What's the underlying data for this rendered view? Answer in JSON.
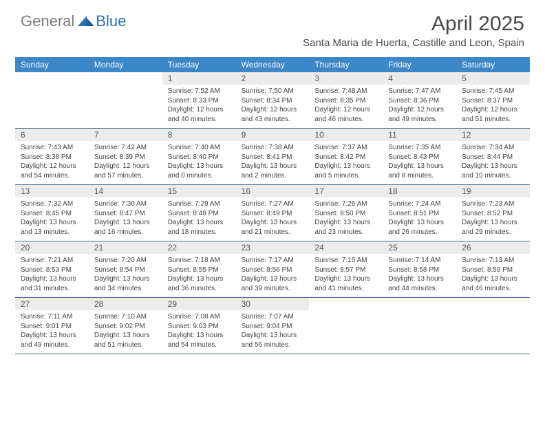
{
  "logo": {
    "part1": "General",
    "part2": "Blue"
  },
  "title": "April 2025",
  "location": "Santa Maria de Huerta, Castille and Leon, Spain",
  "colors": {
    "header_bg": "#3b87c8",
    "header_text": "#ffffff",
    "daynum_bg": "#ececec",
    "daynum_text": "#555555",
    "info_text": "#444444",
    "rule": "#3b6fa3",
    "logo_gray": "#7a7a7a",
    "logo_blue": "#2b6fb3",
    "title_color": "#4a4a4a"
  },
  "day_names": [
    "Sunday",
    "Monday",
    "Tuesday",
    "Wednesday",
    "Thursday",
    "Friday",
    "Saturday"
  ],
  "weeks": [
    [
      {
        "n": "",
        "sr": "",
        "ss": "",
        "dl": ""
      },
      {
        "n": "",
        "sr": "",
        "ss": "",
        "dl": ""
      },
      {
        "n": "1",
        "sr": "7:52 AM",
        "ss": "8:33 PM",
        "dl": "12 hours and 40 minutes."
      },
      {
        "n": "2",
        "sr": "7:50 AM",
        "ss": "8:34 PM",
        "dl": "12 hours and 43 minutes."
      },
      {
        "n": "3",
        "sr": "7:48 AM",
        "ss": "8:35 PM",
        "dl": "12 hours and 46 minutes."
      },
      {
        "n": "4",
        "sr": "7:47 AM",
        "ss": "8:36 PM",
        "dl": "12 hours and 49 minutes."
      },
      {
        "n": "5",
        "sr": "7:45 AM",
        "ss": "8:37 PM",
        "dl": "12 hours and 51 minutes."
      }
    ],
    [
      {
        "n": "6",
        "sr": "7:43 AM",
        "ss": "8:38 PM",
        "dl": "12 hours and 54 minutes."
      },
      {
        "n": "7",
        "sr": "7:42 AM",
        "ss": "8:39 PM",
        "dl": "12 hours and 57 minutes."
      },
      {
        "n": "8",
        "sr": "7:40 AM",
        "ss": "8:40 PM",
        "dl": "13 hours and 0 minutes."
      },
      {
        "n": "9",
        "sr": "7:38 AM",
        "ss": "8:41 PM",
        "dl": "13 hours and 2 minutes."
      },
      {
        "n": "10",
        "sr": "7:37 AM",
        "ss": "8:42 PM",
        "dl": "13 hours and 5 minutes."
      },
      {
        "n": "11",
        "sr": "7:35 AM",
        "ss": "8:43 PM",
        "dl": "13 hours and 8 minutes."
      },
      {
        "n": "12",
        "sr": "7:34 AM",
        "ss": "8:44 PM",
        "dl": "13 hours and 10 minutes."
      }
    ],
    [
      {
        "n": "13",
        "sr": "7:32 AM",
        "ss": "8:45 PM",
        "dl": "13 hours and 13 minutes."
      },
      {
        "n": "14",
        "sr": "7:30 AM",
        "ss": "8:47 PM",
        "dl": "13 hours and 16 minutes."
      },
      {
        "n": "15",
        "sr": "7:29 AM",
        "ss": "8:48 PM",
        "dl": "13 hours and 18 minutes."
      },
      {
        "n": "16",
        "sr": "7:27 AM",
        "ss": "8:49 PM",
        "dl": "13 hours and 21 minutes."
      },
      {
        "n": "17",
        "sr": "7:26 AM",
        "ss": "8:50 PM",
        "dl": "13 hours and 23 minutes."
      },
      {
        "n": "18",
        "sr": "7:24 AM",
        "ss": "8:51 PM",
        "dl": "13 hours and 26 minutes."
      },
      {
        "n": "19",
        "sr": "7:23 AM",
        "ss": "8:52 PM",
        "dl": "13 hours and 29 minutes."
      }
    ],
    [
      {
        "n": "20",
        "sr": "7:21 AM",
        "ss": "8:53 PM",
        "dl": "13 hours and 31 minutes."
      },
      {
        "n": "21",
        "sr": "7:20 AM",
        "ss": "8:54 PM",
        "dl": "13 hours and 34 minutes."
      },
      {
        "n": "22",
        "sr": "7:18 AM",
        "ss": "8:55 PM",
        "dl": "13 hours and 36 minutes."
      },
      {
        "n": "23",
        "sr": "7:17 AM",
        "ss": "8:56 PM",
        "dl": "13 hours and 39 minutes."
      },
      {
        "n": "24",
        "sr": "7:15 AM",
        "ss": "8:57 PM",
        "dl": "13 hours and 41 minutes."
      },
      {
        "n": "25",
        "sr": "7:14 AM",
        "ss": "8:58 PM",
        "dl": "13 hours and 44 minutes."
      },
      {
        "n": "26",
        "sr": "7:13 AM",
        "ss": "8:59 PM",
        "dl": "13 hours and 46 minutes."
      }
    ],
    [
      {
        "n": "27",
        "sr": "7:11 AM",
        "ss": "9:01 PM",
        "dl": "13 hours and 49 minutes."
      },
      {
        "n": "28",
        "sr": "7:10 AM",
        "ss": "9:02 PM",
        "dl": "13 hours and 51 minutes."
      },
      {
        "n": "29",
        "sr": "7:08 AM",
        "ss": "9:03 PM",
        "dl": "13 hours and 54 minutes."
      },
      {
        "n": "30",
        "sr": "7:07 AM",
        "ss": "9:04 PM",
        "dl": "13 hours and 56 minutes."
      },
      {
        "n": "",
        "sr": "",
        "ss": "",
        "dl": ""
      },
      {
        "n": "",
        "sr": "",
        "ss": "",
        "dl": ""
      },
      {
        "n": "",
        "sr": "",
        "ss": "",
        "dl": ""
      }
    ]
  ],
  "labels": {
    "sunrise": "Sunrise:",
    "sunset": "Sunset:",
    "daylight": "Daylight:"
  }
}
